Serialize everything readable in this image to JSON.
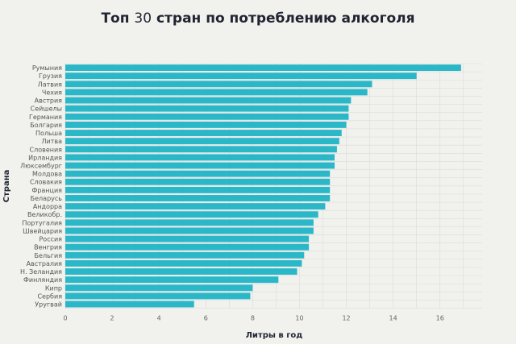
{
  "title": {
    "part1": "Топ ",
    "number": "30",
    "part2": " стран по потреблению алкоголя"
  },
  "chart_data": {
    "type": "bar",
    "orientation": "horizontal",
    "title": "Топ 30 стран по потреблению алкоголя",
    "xlabel": "Литры в год",
    "ylabel": "Страна",
    "xlim": [
      0,
      17.8
    ],
    "xticks": [
      0,
      2,
      4,
      6,
      8,
      10,
      12,
      14,
      16
    ],
    "grid": true,
    "bar_color": "#2ab8c9",
    "categories": [
      "Румыния",
      "Грузия",
      "Латвия",
      "Чехия",
      "Австрия",
      "Сейшелы",
      "Германия",
      "Болгария",
      "Польша",
      "Литва",
      "Словения",
      "Ирландия",
      "Люксембург",
      "Молдова",
      "Словакия",
      "Франция",
      "Беларусь",
      "Андорра",
      "Великобр.",
      "Португалия",
      "Швейцария",
      "Россия",
      "Венгрия",
      "Бельгия",
      "Австралия",
      "Н. Зеландия",
      "Финляндия",
      "Кипр",
      "Сербия",
      "Уругвай"
    ],
    "values": [
      16.9,
      15.0,
      13.1,
      12.9,
      12.2,
      12.1,
      12.1,
      12.0,
      11.8,
      11.7,
      11.6,
      11.5,
      11.5,
      11.3,
      11.3,
      11.3,
      11.3,
      11.1,
      10.8,
      10.6,
      10.6,
      10.4,
      10.4,
      10.2,
      10.1,
      9.9,
      9.1,
      8.0,
      7.9,
      5.5
    ]
  }
}
